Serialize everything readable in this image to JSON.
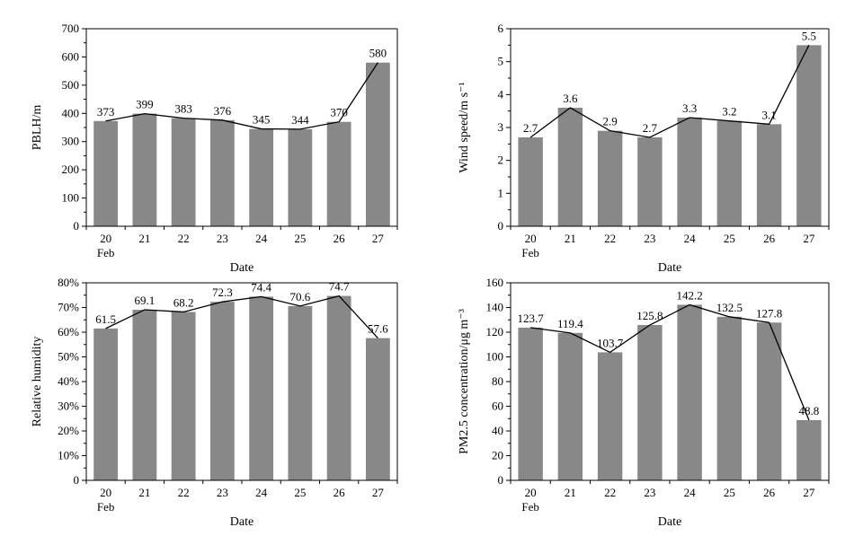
{
  "chart_data": [
    {
      "type": "bar",
      "categories": [
        "20",
        "21",
        "22",
        "23",
        "24",
        "25",
        "26",
        "27"
      ],
      "category_sublabel": "Feb",
      "values": [
        373,
        399,
        383,
        376,
        345,
        344,
        370,
        580
      ],
      "data_labels": [
        "373",
        "399",
        "383",
        "376",
        "345",
        "344",
        "370",
        "580"
      ],
      "line_overlay": true,
      "xlabel": "Date",
      "ylabel": "PBLH/m",
      "ylim": [
        0,
        700
      ],
      "yticks": [
        0,
        100,
        200,
        300,
        400,
        500,
        600,
        700
      ],
      "ytick_labels": [
        "0",
        "100",
        "200",
        "300",
        "400",
        "500",
        "600",
        "700"
      ],
      "grid": false,
      "bar_color": "#888888"
    },
    {
      "type": "bar",
      "categories": [
        "20",
        "21",
        "22",
        "23",
        "24",
        "25",
        "26",
        "27"
      ],
      "category_sublabel": "Feb",
      "values": [
        2.7,
        3.6,
        2.9,
        2.7,
        3.3,
        3.2,
        3.1,
        5.5
      ],
      "data_labels": [
        "2.7",
        "3.6",
        "2.9",
        "2.7",
        "3.3",
        "3.2",
        "3.1",
        "5.5"
      ],
      "line_overlay": true,
      "xlabel": "Date",
      "ylabel": "Wind speed/m s⁻¹",
      "ylim": [
        0,
        6
      ],
      "yticks": [
        0,
        1,
        2,
        3,
        4,
        5,
        6
      ],
      "ytick_labels": [
        "0",
        "1",
        "2",
        "3",
        "4",
        "5",
        "6"
      ],
      "grid": false,
      "bar_color": "#888888"
    },
    {
      "type": "bar",
      "categories": [
        "20",
        "21",
        "22",
        "23",
        "24",
        "25",
        "26",
        "27"
      ],
      "category_sublabel": "Feb",
      "values": [
        61.5,
        69.1,
        68.2,
        72.3,
        74.4,
        70.6,
        74.7,
        57.6
      ],
      "data_labels": [
        "61.5",
        "69.1",
        "68.2",
        "72.3",
        "74.4",
        "70.6",
        "74.7",
        "57.6"
      ],
      "line_overlay": true,
      "xlabel": "Date",
      "ylabel": "Relative humidity",
      "ylim": [
        0,
        80
      ],
      "yticks": [
        0,
        10,
        20,
        30,
        40,
        50,
        60,
        70,
        80
      ],
      "ytick_labels": [
        "0",
        "10%",
        "20%",
        "30%",
        "40%",
        "50%",
        "60%",
        "70%",
        "80%"
      ],
      "grid": false,
      "bar_color": "#888888"
    },
    {
      "type": "bar",
      "categories": [
        "20",
        "21",
        "22",
        "23",
        "24",
        "25",
        "26",
        "27"
      ],
      "category_sublabel": "Feb",
      "values": [
        123.7,
        119.4,
        103.7,
        125.8,
        142.2,
        132.5,
        127.8,
        48.8
      ],
      "data_labels": [
        "123.7",
        "119.4",
        "103.7",
        "125.8",
        "142.2",
        "132.5",
        "127.8",
        "48.8"
      ],
      "line_overlay": true,
      "xlabel": "Date",
      "ylabel": "PM2.5 concentration/μg m⁻³",
      "ylim": [
        0,
        160
      ],
      "yticks": [
        0,
        20,
        40,
        60,
        80,
        100,
        120,
        140,
        160
      ],
      "ytick_labels": [
        "0",
        "20",
        "40",
        "60",
        "80",
        "100",
        "120",
        "140",
        "160"
      ],
      "grid": false,
      "bar_color": "#888888"
    }
  ]
}
